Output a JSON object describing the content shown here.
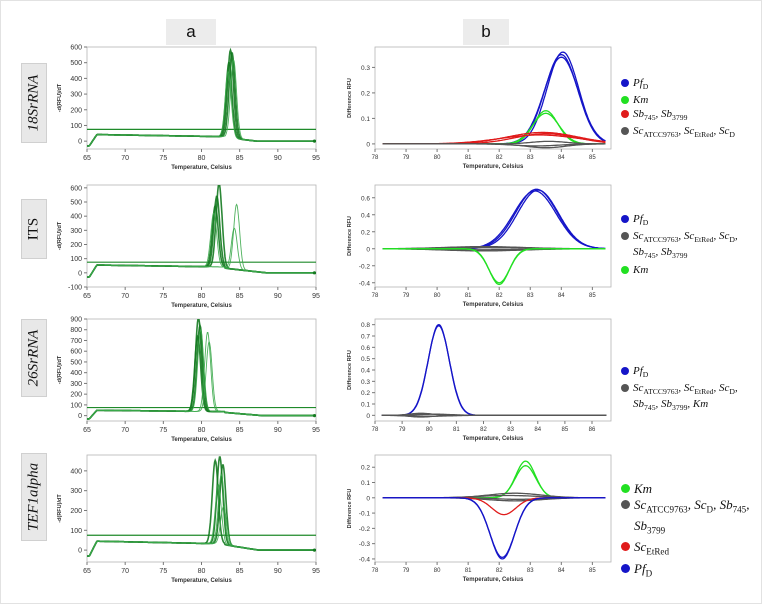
{
  "column_labels": {
    "a": "a",
    "b": "b"
  },
  "row_labels": [
    "18SrRNA",
    "ITS",
    "26SrRNA",
    "TEF1alpha"
  ],
  "legend_colors": {
    "blue": "#1515c8",
    "green": "#22e022",
    "red": "#e01b1b",
    "gray": "#555555"
  },
  "legends": [
    [
      "Pf_D",
      "Km",
      "Sb_745, Sb_3799",
      "Sc_ATCC9763, Sc_EtRed, Sc_D"
    ],
    [
      "Pf_D",
      "Sc_ATCC9763, Sc_EtRed, Sc_D, Sb_745, Sb_3799",
      "Km"
    ],
    [
      "Pf_D",
      "Sc_ATCC9763, Sc_EtRed, Sc_D, Sb_745, Sb_3799, Km"
    ],
    [
      "Km",
      "Sc_ATCC9763, Sc_D, Sb_745, Sb_3799",
      "Sc_EtRed",
      "Pf_D"
    ]
  ],
  "legend_series_colors": [
    [
      "blue",
      "green",
      "red",
      "gray"
    ],
    [
      "blue",
      "gray",
      "green"
    ],
    [
      "blue",
      "gray"
    ],
    [
      "green",
      "gray",
      "red",
      "blue"
    ]
  ],
  "chart_data": [
    {
      "id": "a1",
      "type": "line",
      "title": "",
      "xlabel": "Temperature, Celsius",
      "ylabel": "-d(RFU)/dT",
      "xlim": [
        65,
        95
      ],
      "ylim": [
        -50,
        600
      ],
      "xticks": [
        65,
        70,
        75,
        80,
        85,
        90,
        95
      ],
      "yticks": [
        0,
        100,
        200,
        300,
        400,
        500,
        600
      ],
      "threshold": 75,
      "series": [
        {
          "name": "melt peaks",
          "color": "#1f8a2a",
          "plateau": 42,
          "peaks": [
            {
              "t": 83.6,
              "h": 480
            },
            {
              "t": 83.8,
              "h": 560
            },
            {
              "t": 84.0,
              "h": 545
            },
            {
              "t": 84.2,
              "h": 500
            },
            {
              "t": 83.5,
              "h": 420
            }
          ]
        }
      ]
    },
    {
      "id": "b1",
      "type": "line",
      "title": "",
      "xlabel": "Temperature, Celsius",
      "ylabel": "Difference RFU",
      "xlim": [
        78,
        85.6
      ],
      "ylim": [
        -0.02,
        0.38
      ],
      "xticks": [
        78,
        79,
        80,
        81,
        82,
        83,
        84,
        85
      ],
      "yticks": [
        0.0,
        0.1,
        0.2,
        0.3
      ],
      "series": [
        {
          "name": "Pf_D",
          "color": "#1515c8",
          "curves": [
            {
              "t": 84.0,
              "h": 0.35,
              "w": 0.75
            },
            {
              "t": 84.05,
              "h": 0.36,
              "w": 0.72
            },
            {
              "t": 84.0,
              "h": 0.34,
              "w": 0.78
            }
          ]
        },
        {
          "name": "Km",
          "color": "#22e022",
          "curves": [
            {
              "t": 83.5,
              "h": 0.13,
              "w": 0.55
            },
            {
              "t": 83.5,
              "h": 0.12,
              "w": 0.6
            }
          ]
        },
        {
          "name": "Sb",
          "color": "#e01b1b",
          "curves": [
            {
              "t": 83.4,
              "h": 0.045,
              "w": 1.6
            },
            {
              "t": 83.3,
              "h": 0.035,
              "w": 1.8
            },
            {
              "t": 83.5,
              "h": 0.04,
              "w": 1.4
            }
          ]
        },
        {
          "name": "Sc",
          "color": "#555555",
          "curves": [
            {
              "t": 83.5,
              "h": -0.015,
              "w": 0.9
            },
            {
              "t": 83.6,
              "h": 0.01,
              "w": 0.8
            },
            {
              "t": 83.2,
              "h": -0.008,
              "w": 1.0
            }
          ]
        }
      ]
    },
    {
      "id": "a2",
      "type": "line",
      "title": "",
      "xlabel": "Temperature, Celsius",
      "ylabel": "-d(RFU)/dT",
      "xlim": [
        65,
        95
      ],
      "ylim": [
        -100,
        620
      ],
      "xticks": [
        65,
        70,
        75,
        80,
        85,
        90,
        95
      ],
      "yticks": [
        -100,
        0,
        100,
        200,
        300,
        400,
        500,
        600
      ],
      "threshold": 75,
      "series": [
        {
          "name": "melt peaks",
          "color": "#1f8a2a",
          "plateau": 55,
          "peaks": [
            {
              "t": 81.8,
              "h": 430
            },
            {
              "t": 82.0,
              "h": 500
            },
            {
              "t": 82.3,
              "h": 590
            },
            {
              "t": 81.6,
              "h": 380
            },
            {
              "t": 84.6,
              "h": 460
            },
            {
              "t": 84.3,
              "h": 290
            }
          ]
        }
      ]
    },
    {
      "id": "b2",
      "type": "line",
      "title": "",
      "xlabel": "Temperature, Celsius",
      "ylabel": "Difference RFU",
      "xlim": [
        78,
        85.6
      ],
      "ylim": [
        -0.45,
        0.75
      ],
      "xticks": [
        78,
        79,
        80,
        81,
        82,
        83,
        84,
        85
      ],
      "yticks": [
        -0.4,
        -0.2,
        0.0,
        0.2,
        0.4,
        0.6
      ],
      "series": [
        {
          "name": "Pf_D",
          "color": "#1515c8",
          "curves": [
            {
              "t": 83.2,
              "h": 0.7,
              "w": 0.95
            },
            {
              "t": 83.15,
              "h": 0.68,
              "w": 0.97
            },
            {
              "t": 83.25,
              "h": 0.69,
              "w": 0.93
            }
          ]
        },
        {
          "name": "Sc",
          "color": "#555555",
          "curves": [
            {
              "t": 81.5,
              "h": 0.025,
              "w": 1.8
            },
            {
              "t": 81.5,
              "h": -0.025,
              "w": 1.8
            },
            {
              "t": 81.5,
              "h": 0.012,
              "w": 1.8
            },
            {
              "t": 81.5,
              "h": -0.012,
              "w": 1.8
            }
          ]
        },
        {
          "name": "Km",
          "color": "#22e022",
          "curves": [
            {
              "t": 82.0,
              "h": -0.42,
              "w": 0.45
            },
            {
              "t": 82.0,
              "h": -0.4,
              "w": 0.47
            }
          ]
        }
      ]
    },
    {
      "id": "a3",
      "type": "line",
      "title": "",
      "xlabel": "Temperature, Celsius",
      "ylabel": "-d(RFU)/dT",
      "xlim": [
        65,
        95
      ],
      "ylim": [
        -50,
        900
      ],
      "xticks": [
        65,
        70,
        75,
        80,
        85,
        90,
        95
      ],
      "yticks": [
        0,
        100,
        200,
        300,
        400,
        500,
        600,
        700,
        800,
        900
      ],
      "threshold": 75,
      "series": [
        {
          "name": "melt peaks",
          "color": "#1f8a2a",
          "plateau": 50,
          "peaks": [
            {
              "t": 79.6,
              "h": 870
            },
            {
              "t": 79.8,
              "h": 800
            },
            {
              "t": 79.5,
              "h": 700
            },
            {
              "t": 79.9,
              "h": 760
            },
            {
              "t": 80.8,
              "h": 740
            },
            {
              "t": 81.0,
              "h": 650
            }
          ]
        }
      ]
    },
    {
      "id": "b3",
      "type": "line",
      "title": "",
      "xlabel": "Temperature, Celsius",
      "ylabel": "Difference RFU",
      "xlim": [
        78,
        86.7
      ],
      "ylim": [
        -0.05,
        0.85
      ],
      "xticks": [
        78,
        79,
        80,
        81,
        82,
        83,
        84,
        85,
        86
      ],
      "yticks": [
        0.0,
        0.1,
        0.2,
        0.3,
        0.4,
        0.5,
        0.6,
        0.7,
        0.8
      ],
      "series": [
        {
          "name": "Pf_D",
          "color": "#1515c8",
          "curves": [
            {
              "t": 80.35,
              "h": 0.8,
              "w": 0.55
            },
            {
              "t": 80.35,
              "h": 0.79,
              "w": 0.56
            }
          ]
        },
        {
          "name": "Sc",
          "color": "#555555",
          "curves": [
            {
              "t": 79.7,
              "h": 0.018,
              "w": 0.6
            },
            {
              "t": 79.7,
              "h": -0.015,
              "w": 0.6
            },
            {
              "t": 80.2,
              "h": 0.01,
              "w": 0.9
            },
            {
              "t": 80.0,
              "h": -0.008,
              "w": 1.0
            }
          ]
        }
      ]
    },
    {
      "id": "a4",
      "type": "line",
      "title": "",
      "xlabel": "Temperature, Celsius",
      "ylabel": "-d(RFU)/dT",
      "xlim": [
        65,
        95
      ],
      "ylim": [
        -60,
        480
      ],
      "xticks": [
        65,
        70,
        75,
        80,
        85,
        90,
        95
      ],
      "yticks": [
        0,
        100,
        200,
        300,
        400
      ],
      "threshold": 75,
      "series": [
        {
          "name": "melt peaks",
          "color": "#1f8a2a",
          "plateau": 45,
          "peaks": [
            {
              "t": 81.8,
              "h": 420
            },
            {
              "t": 82.4,
              "h": 440
            },
            {
              "t": 82.8,
              "h": 400
            },
            {
              "t": 82.6,
              "h": 350
            },
            {
              "t": 82.2,
              "h": 300
            },
            {
              "t": 82.9,
              "h": 190
            }
          ]
        }
      ]
    },
    {
      "id": "b4",
      "type": "line",
      "title": "",
      "xlabel": "Temperature, Celsius",
      "ylabel": "Difference RFU",
      "xlim": [
        78,
        85.6
      ],
      "ylim": [
        -0.42,
        0.28
      ],
      "xticks": [
        78,
        79,
        80,
        81,
        82,
        83,
        84,
        85
      ],
      "yticks": [
        -0.4,
        -0.3,
        -0.2,
        -0.1,
        0.0,
        0.1,
        0.2
      ],
      "series": [
        {
          "name": "Km",
          "color": "#22e022",
          "curves": [
            {
              "t": 82.85,
              "h": 0.24,
              "w": 0.45
            },
            {
              "t": 82.85,
              "h": 0.21,
              "w": 0.47
            }
          ]
        },
        {
          "name": "Sc",
          "color": "#555555",
          "curves": [
            {
              "t": 82.5,
              "h": 0.03,
              "w": 1.2
            },
            {
              "t": 82.5,
              "h": -0.02,
              "w": 1.2
            },
            {
              "t": 82.3,
              "h": 0.015,
              "w": 1.4
            },
            {
              "t": 82.6,
              "h": -0.01,
              "w": 1.0
            }
          ]
        },
        {
          "name": "Sc_EtRed",
          "color": "#e01b1b",
          "curves": [
            {
              "t": 82.15,
              "h": -0.11,
              "w": 0.55
            }
          ]
        },
        {
          "name": "Pf_D",
          "color": "#1515c8",
          "curves": [
            {
              "t": 82.1,
              "h": -0.4,
              "w": 0.55
            },
            {
              "t": 82.1,
              "h": -0.39,
              "w": 0.56
            }
          ]
        }
      ]
    }
  ]
}
